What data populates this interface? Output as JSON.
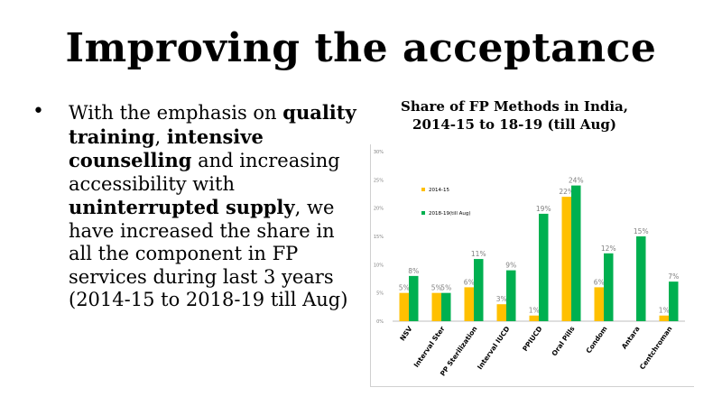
{
  "slide": {
    "title": "Improving the acceptance",
    "bullet": {
      "segments": [
        {
          "text": "With the emphasis on ",
          "bold": false
        },
        {
          "text": "quality training",
          "bold": true
        },
        {
          "text": ", ",
          "bold": false
        },
        {
          "text": "intensive counselling",
          "bold": true
        },
        {
          "text": " and increasing accessibility with ",
          "bold": false
        },
        {
          "text": "uninterrupted supply",
          "bold": true
        },
        {
          "text": ", we have increased the share in all the component in FP services  during last 3 years (2014-15 to 2018-19 till Aug)",
          "bold": false
        }
      ]
    }
  },
  "chart_data": {
    "type": "bar",
    "title": "Share of FP Methods in India, 2014-15 to 18-19 (till Aug)",
    "categories": [
      "NSV",
      "Interval Ster",
      "PP Sterilization",
      "Interval IUCD",
      "PPIUCD",
      "Oral Pills",
      "Condom",
      "Antara",
      "Centchroman"
    ],
    "series": [
      {
        "name": "2014-15",
        "color": "#ffc000",
        "values": [
          5,
          5,
          6,
          3,
          1,
          22,
          6,
          null,
          1
        ],
        "labels": [
          "5%",
          "5%",
          "6%",
          "3%",
          "1%",
          "22%",
          "6%",
          "",
          "1%"
        ]
      },
      {
        "name": "2018-19(till Aug)",
        "color": "#00b050",
        "values": [
          8,
          5,
          11,
          9,
          19,
          24,
          12,
          15,
          7
        ],
        "labels": [
          "8%",
          "5%",
          "11%",
          "9%",
          "19%",
          "24%",
          "12%",
          "15%",
          "7%"
        ]
      }
    ],
    "yticks": [
      "0%",
      "5%",
      "10%",
      "15%",
      "20%",
      "25%",
      "30%"
    ],
    "ylim": [
      0,
      30
    ],
    "legend": "top-left",
    "grid": false
  }
}
